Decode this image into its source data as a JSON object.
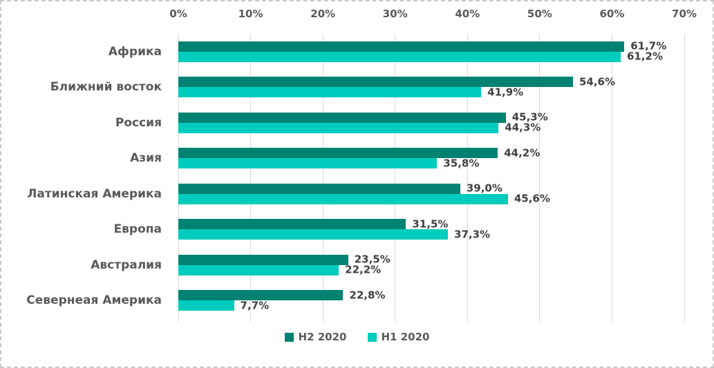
{
  "chart_data": {
    "type": "bar",
    "orientation": "horizontal",
    "title": "",
    "categories": [
      "Африка",
      "Ближний восток",
      "Россия",
      "Азия",
      "Латинская Америка",
      "Европа",
      "Австралия",
      "Севернеая Америка"
    ],
    "series": [
      {
        "name": "H2 2020",
        "color": "#008272",
        "values": [
          61.7,
          54.6,
          45.3,
          44.2,
          39.0,
          31.5,
          23.5,
          22.8
        ],
        "labels": [
          "61,7%",
          "54,6%",
          "45,3%",
          "44,2%",
          "39,0%",
          "31,5%",
          "23,5%",
          "22,8%"
        ]
      },
      {
        "name": "H1 2020",
        "color": "#00CCBE",
        "values": [
          61.2,
          41.9,
          44.3,
          35.8,
          45.6,
          37.3,
          22.2,
          7.7
        ],
        "labels": [
          "61,2%",
          "41,9%",
          "44,3%",
          "35,8%",
          "45,6%",
          "37,3%",
          "22,2%",
          "7,7%"
        ]
      }
    ],
    "x_axis": {
      "min": 0,
      "max": 70,
      "ticks": [
        "0%",
        "10%",
        "20%",
        "30%",
        "40%",
        "50%",
        "60%",
        "70%"
      ],
      "position": "top"
    },
    "grid": true,
    "legend_position": "bottom",
    "colors": {
      "grid": "#D9D9D9",
      "axis_text": "#595959",
      "data_label_text": "#404040",
      "category_text": "#595959",
      "border": "#C9C9C9",
      "background": "#FFFFFF"
    }
  }
}
